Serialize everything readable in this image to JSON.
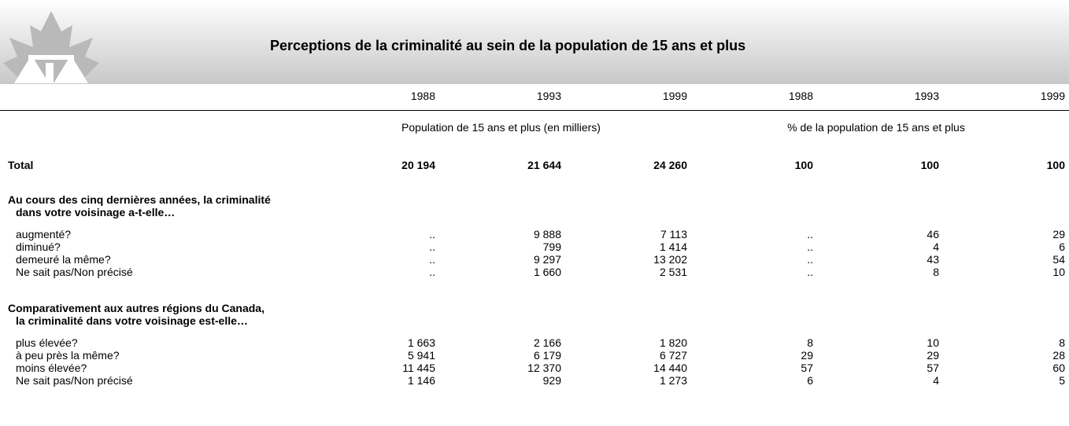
{
  "header": {
    "title": "Perceptions de la criminalité au sein de la population de 15 ans et plus"
  },
  "table": {
    "columns": [
      "1988",
      "1993",
      "1999",
      "1988",
      "1993",
      "1999"
    ],
    "groups": [
      "Population de 15 ans et plus (en milliers)",
      "% de la population de 15 ans et plus"
    ],
    "total": {
      "label": "Total",
      "cells": [
        "20 194",
        "21 644",
        "24 260",
        "100",
        "100",
        "100"
      ]
    },
    "sections": [
      {
        "heading": [
          "Au cours des cinq dernières années, la criminalité",
          "dans votre voisinage a-t-elle…"
        ],
        "rows": [
          {
            "label": "augmenté?",
            "cells": [
              "..",
              "9 888",
              "7 113",
              "..",
              "46",
              "29"
            ]
          },
          {
            "label": "diminué?",
            "cells": [
              "..",
              "799",
              "1 414",
              "..",
              "4",
              "6"
            ]
          },
          {
            "label": "demeuré la même?",
            "cells": [
              "..",
              "9 297",
              "13 202",
              "..",
              "43",
              "54"
            ]
          },
          {
            "label": "Ne sait pas/Non précisé",
            "cells": [
              "..",
              "1 660",
              "2 531",
              "..",
              "8",
              "10"
            ]
          }
        ]
      },
      {
        "heading": [
          "Comparativement aux autres régions du Canada,",
          "la criminalité dans votre voisinage est-elle…"
        ],
        "rows": [
          {
            "label": "plus élevée?",
            "cells": [
              "1 663",
              "2 166",
              "1 820",
              "8",
              "10",
              "8"
            ]
          },
          {
            "label": "à peu près la même?",
            "cells": [
              "5 941",
              "6 179",
              "6 727",
              "29",
              "29",
              "28"
            ]
          },
          {
            "label": "moins élevée?",
            "cells": [
              "11 445",
              "12 370",
              "14 440",
              "57",
              "57",
              "60"
            ]
          },
          {
            "label": "Ne sait pas/Non précisé",
            "cells": [
              "1 146",
              "929",
              "1 273",
              "6",
              "4",
              "5"
            ]
          }
        ]
      }
    ]
  }
}
